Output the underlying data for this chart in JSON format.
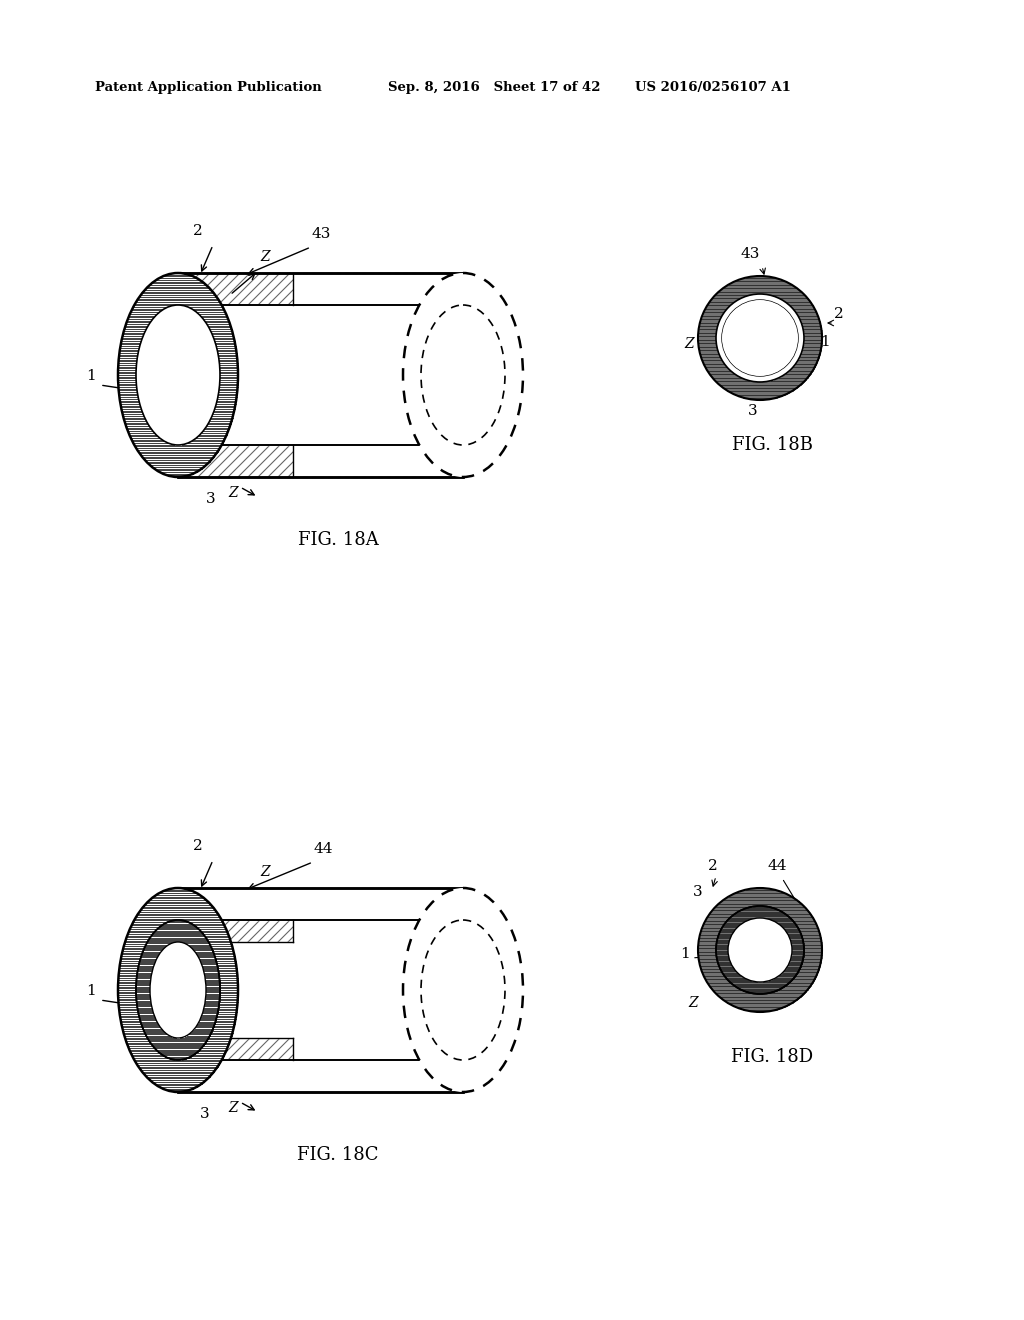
{
  "bg_color": "#ffffff",
  "header_left": "Patent Application Publication",
  "header_mid": "Sep. 8, 2016   Sheet 17 of 42",
  "header_right": "US 2016/0256107 A1",
  "fig_labels": [
    "FIG. 18A",
    "FIG. 18B",
    "FIG. 18C",
    "FIG. 18D"
  ],
  "line_color": "#000000"
}
